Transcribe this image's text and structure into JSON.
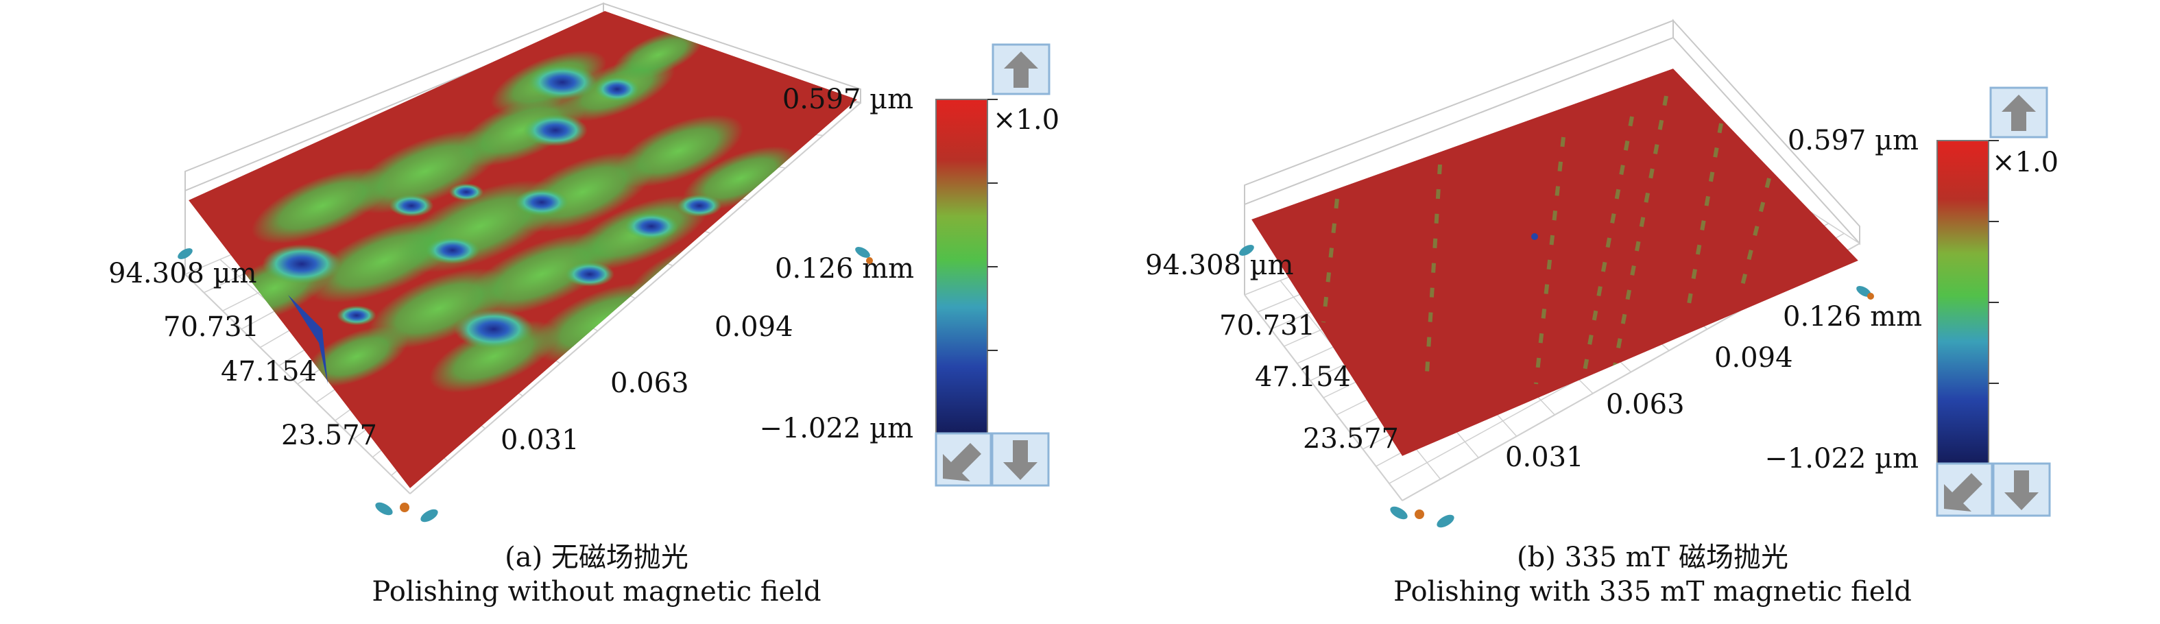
{
  "panels": [
    {
      "id": "a",
      "scale": {
        "max_label": "0.597 µm",
        "min_label": "−1.022 µm",
        "magnification": "×1.0",
        "up_icon": "arrow-up-icon",
        "reset_icon": "arrow-diagonal-icon",
        "down_icon": "arrow-down-icon"
      },
      "y_ticks": [
        "94.308 µm",
        "70.731",
        "47.154",
        "23.577"
      ],
      "x_ticks": [
        "0.031",
        "0.063",
        "0.094",
        "0.126 mm"
      ],
      "caption_line1": "(a) 无磁场抛光",
      "caption_line2": "Polishing without magnetic field"
    },
    {
      "id": "b",
      "scale": {
        "max_label": "0.597 µm",
        "min_label": "−1.022 µm",
        "magnification": "×1.0",
        "up_icon": "arrow-up-icon",
        "reset_icon": "arrow-diagonal-icon",
        "down_icon": "arrow-down-icon"
      },
      "y_ticks": [
        "94.308 µm",
        "70.731",
        "47.154",
        "23.577"
      ],
      "x_ticks": [
        "0.031",
        "0.063",
        "0.094",
        "0.126 mm"
      ],
      "caption_line1": "(b) 335 mT 磁场抛光",
      "caption_line2": "Polishing with 335 mT magnetic field"
    }
  ],
  "colors": {
    "surface_red": "#b52b27",
    "green": "#52b64a",
    "blue": "#2544a8",
    "grid": "#c8c8c8",
    "button_bg": "#d7e7f5",
    "button_border": "#8db4d8",
    "icon_gray": "#8a8a8a"
  }
}
